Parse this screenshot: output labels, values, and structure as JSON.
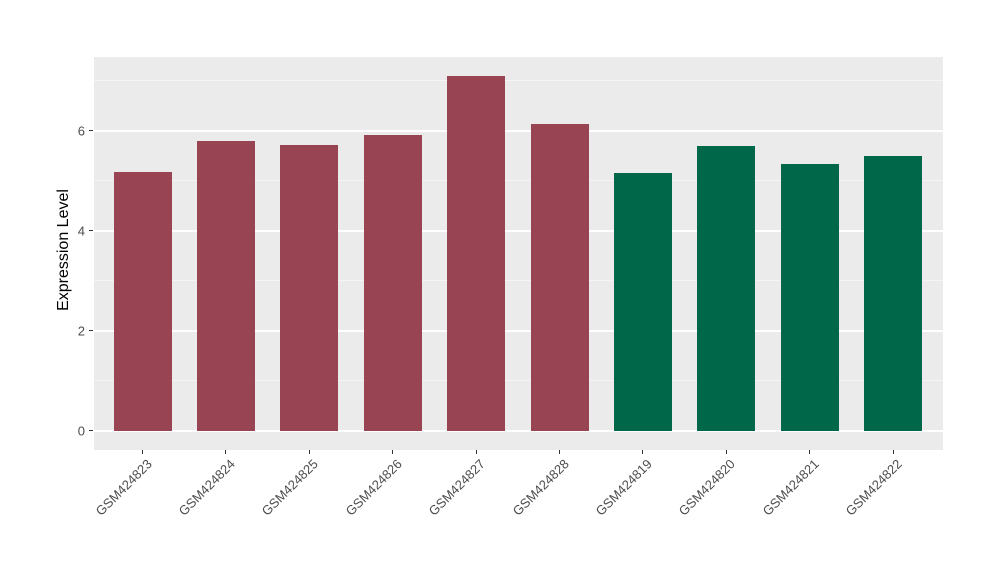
{
  "chart_data": {
    "type": "bar",
    "title": "",
    "ylabel": "Expression Level",
    "xlabel": "",
    "categories": [
      "GSM424823",
      "GSM424824",
      "GSM424825",
      "GSM424826",
      "GSM424827",
      "GSM424828",
      "GSM424819",
      "GSM424820",
      "GSM424821",
      "GSM424822"
    ],
    "values": [
      5.18,
      5.79,
      5.72,
      5.91,
      7.1,
      6.13,
      5.16,
      5.7,
      5.34,
      5.49
    ],
    "bar_colors": [
      "#994453",
      "#994453",
      "#994453",
      "#994453",
      "#994453",
      "#994453",
      "#006848",
      "#006848",
      "#006848",
      "#006848"
    ],
    "yticks": [
      0,
      2,
      4,
      6
    ],
    "minor_gridlines": [
      1,
      3,
      5,
      7
    ],
    "ylim": [
      -0.38,
      7.47
    ],
    "grid": "on",
    "legend": "none",
    "colors": {
      "page_background": "#FFFFFF",
      "panel_background": "#EBEBEB",
      "grid_major": "#FFFFFF",
      "grid_minor": "#F5F5F5",
      "tick_marks": "#333333",
      "axis_text": "#4D4D4D",
      "axis_title": "#000000",
      "maroon_group": "#994453",
      "green_group": "#006848"
    }
  }
}
